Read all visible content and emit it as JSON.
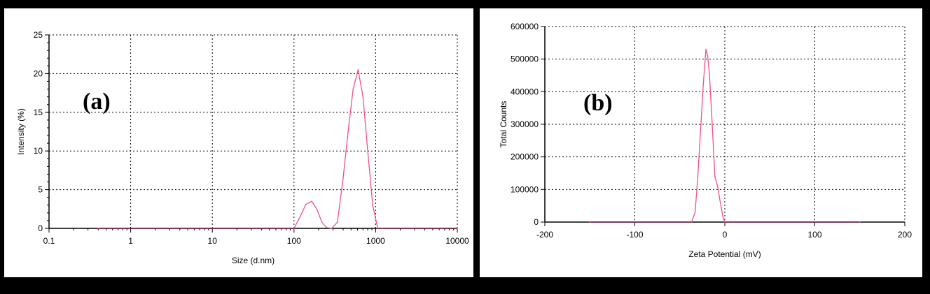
{
  "chart_data": [
    {
      "type": "line",
      "panel_label": "(a)",
      "xlabel": "Size (d.nm)",
      "ylabel": "Intensity (%)",
      "xscale": "log",
      "xlim": [
        0.1,
        10000
      ],
      "ylim": [
        0,
        25
      ],
      "xticks": [
        "0.1",
        "1",
        "10",
        "100",
        "1000",
        "10000"
      ],
      "yticks": [
        "0",
        "5",
        "10",
        "15",
        "20",
        "25"
      ],
      "grid": true,
      "line_color": "#f0508c",
      "baseline_color": "#7a2050",
      "series": [
        {
          "x": [
            0.4,
            100,
            115,
            140,
            165,
            190,
            220,
            250,
            290,
            340,
            400,
            460,
            530,
            610,
            700,
            800,
            920,
            1060,
            1200,
            10000
          ],
          "values": [
            0,
            0,
            1.2,
            3.1,
            3.5,
            2.5,
            0.8,
            0.1,
            0,
            0.8,
            6.5,
            12.5,
            18.0,
            20.5,
            17.0,
            10.0,
            3.0,
            0,
            0,
            0
          ]
        }
      ]
    },
    {
      "type": "line",
      "panel_label": "(b)",
      "xlabel": "Zeta Potential (mV)",
      "ylabel": "Total Counts",
      "xlim": [
        -200,
        200
      ],
      "ylim": [
        0,
        600000
      ],
      "xticks": [
        "-200",
        "-100",
        "0",
        "100",
        "200"
      ],
      "yticks": [
        "0",
        "100000",
        "200000",
        "300000",
        "400000",
        "500000",
        "600000"
      ],
      "grid": true,
      "line_color": "#f0508c",
      "baseline_color": "#7a2050",
      "series": [
        {
          "x": [
            -150,
            -37,
            -33,
            -30,
            -27,
            -24,
            -21,
            -19,
            -17,
            -14,
            -11,
            -8,
            -5,
            -2,
            0,
            150
          ],
          "values": [
            0,
            0,
            30000,
            140000,
            280000,
            420000,
            530000,
            510000,
            450000,
            300000,
            140000,
            110000,
            60000,
            15000,
            0,
            0
          ]
        }
      ]
    }
  ]
}
